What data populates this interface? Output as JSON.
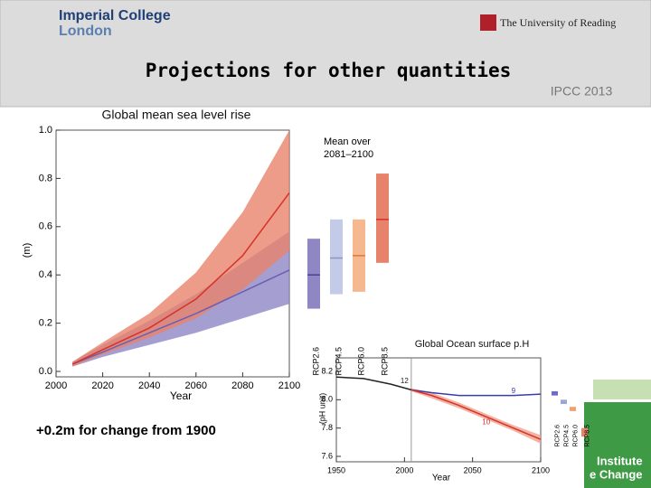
{
  "header": {
    "logo_left": [
      "Imperial College",
      "London"
    ],
    "logo_right": "The University of Reading",
    "title": "Projections for other quantities",
    "source": "IPCC 2013"
  },
  "caption": "+0.2m for change from 1900",
  "footer_logo": [
    "Institute",
    "e Change"
  ],
  "chart_data": [
    {
      "type": "line",
      "title": "Global mean sea level rise",
      "xlabel": "Year",
      "ylabel": "(m)",
      "x": [
        2007,
        2020,
        2040,
        2060,
        2080,
        2100
      ],
      "xlim": [
        2000,
        2100
      ],
      "xticks": [
        2000,
        2020,
        2040,
        2060,
        2080,
        2100
      ],
      "ylim": [
        0,
        1
      ],
      "yticks": [
        {
          "value": 0,
          "label": "0.0"
        },
        0.2,
        0.4,
        0.6,
        0.8,
        {
          "value": 1,
          "label": "1.0"
        }
      ],
      "series": [
        {
          "color": "#6a5fb0",
          "band_color": "#8f86c4",
          "values": [
            0.03,
            0.08,
            0.16,
            0.24,
            0.33,
            0.42
          ],
          "lower": [
            0.02,
            0.06,
            0.11,
            0.16,
            0.22,
            0.28
          ],
          "upper": [
            0.04,
            0.11,
            0.21,
            0.32,
            0.45,
            0.58
          ]
        },
        {
          "color": "#d8312a",
          "band_color": "#e8836b",
          "values": [
            0.03,
            0.09,
            0.18,
            0.3,
            0.48,
            0.74
          ],
          "lower": [
            0.02,
            0.07,
            0.14,
            0.22,
            0.34,
            0.5
          ],
          "upper": [
            0.04,
            0.12,
            0.24,
            0.41,
            0.66,
            1.0
          ]
        }
      ],
      "ranges": {
        "title": [
          "Mean over",
          "2081–2100"
        ],
        "categories": [
          "RCP2.6",
          "RCP4.5",
          "RCP6.0",
          "RCP8.5"
        ],
        "low": [
          0.26,
          0.32,
          0.33,
          0.45
        ],
        "mean": [
          0.4,
          0.47,
          0.48,
          0.63
        ],
        "high": [
          0.55,
          0.63,
          0.63,
          0.82
        ],
        "colors": [
          "#8f86c4",
          "#c4cbe8",
          "#f6b88e",
          "#e8836b"
        ],
        "mean_colors": [
          "#4a3f98",
          "#8a95c8",
          "#e07a3a",
          "#d8312a"
        ]
      }
    },
    {
      "type": "line",
      "title": "Global Ocean surface p.H",
      "xlabel": "Year",
      "ylabel": "(pH unit)",
      "xlim": [
        1950,
        2100
      ],
      "xticks": [
        1950,
        2000,
        2050,
        2100
      ],
      "ylim": [
        7.6,
        8.2
      ],
      "yticks": [
        7.6,
        7.8,
        {
          "value": 8,
          "label": "8.0"
        },
        8.2
      ],
      "reference_x": 2005,
      "series": [
        {
          "color": "#222222",
          "x": [
            1950,
            1970,
            1990,
            2005
          ],
          "values": [
            8.16,
            8.15,
            8.11,
            8.07
          ]
        },
        {
          "color": "#3b3bb0",
          "x": [
            2005,
            2020,
            2040,
            2060,
            2080,
            2100
          ],
          "values": [
            8.07,
            8.05,
            8.03,
            8.03,
            8.03,
            8.04
          ]
        },
        {
          "color": "#d8312a",
          "band_color": "#f0a08c",
          "x": [
            2005,
            2020,
            2040,
            2060,
            2080,
            2100
          ],
          "values": [
            8.07,
            8.03,
            7.96,
            7.88,
            7.8,
            7.72
          ],
          "lower": [
            8.06,
            8.01,
            7.94,
            7.86,
            7.78,
            7.69
          ],
          "upper": [
            8.08,
            8.05,
            7.98,
            7.9,
            7.82,
            7.75
          ]
        }
      ],
      "annotations": [
        {
          "text": "12",
          "x": 2000,
          "y": 8.13,
          "color": "#222222"
        },
        {
          "text": "9",
          "x": 2080,
          "y": 8.06,
          "color": "#3b3bb0"
        },
        {
          "text": "10",
          "x": 2060,
          "y": 7.84,
          "color": "#d8312a"
        }
      ],
      "ranges": {
        "categories": [
          "RCP2.6",
          "RCP4.5",
          "RCP6.0",
          "RCP8.5"
        ],
        "low": [
          8.03,
          7.97,
          7.92,
          7.74
        ],
        "high": [
          8.06,
          8.0,
          7.95,
          7.8
        ],
        "colors": [
          "#6a6ad0",
          "#9aa6d8",
          "#f2a070",
          "#e8836b"
        ]
      }
    }
  ]
}
